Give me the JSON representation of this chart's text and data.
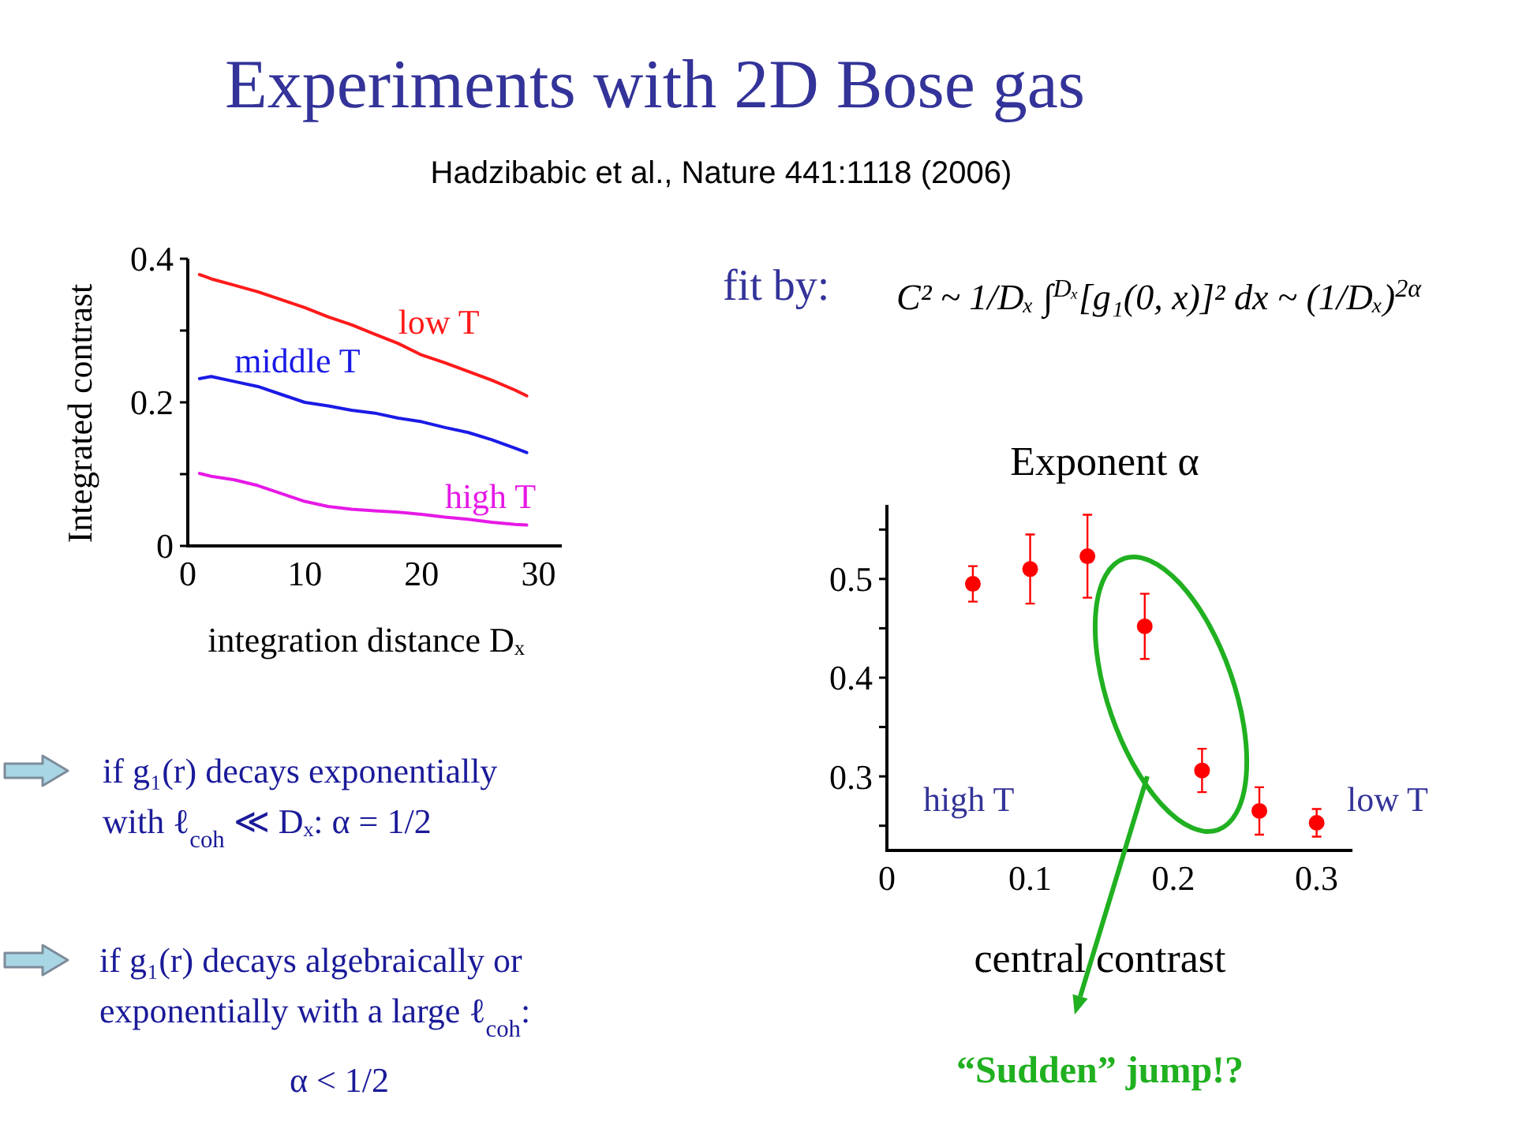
{
  "chart_data": [
    {
      "type": "line",
      "title": "Experiments with 2D Bose gas",
      "subtitle": "Hadzibabic et al., Nature 441:1118 (2006)",
      "xlabel": "integration distance Dₓ",
      "ylabel": "Integrated contrast",
      "annotations": [
        "if g₁(r) decays exponentially",
        "with ℓ$_{coh}$ ≪ Dₓ:  α = 1/2",
        "if g₁(r) decays algebraically or",
        "exponentially with a large ℓ$_{coh}$:",
        "α < 1/2"
      ],
      "x": [
        1,
        2,
        4,
        6,
        8,
        10,
        12,
        14,
        16,
        18,
        20,
        22,
        24,
        26,
        28,
        29
      ],
      "series": [
        {
          "name": "low T",
          "color": "#ff1a1a",
          "values": [
            0.378,
            0.372,
            0.363,
            0.354,
            0.343,
            0.332,
            0.319,
            0.308,
            0.295,
            0.282,
            0.266,
            0.255,
            0.243,
            0.231,
            0.217,
            0.209
          ]
        },
        {
          "name": "middle T",
          "color": "#1a1ae6",
          "values": [
            0.233,
            0.236,
            0.229,
            0.222,
            0.211,
            0.2,
            0.195,
            0.189,
            0.185,
            0.178,
            0.173,
            0.165,
            0.158,
            0.148,
            0.136,
            0.13
          ]
        },
        {
          "name": "high T",
          "color": "#e619e6",
          "values": [
            0.101,
            0.097,
            0.092,
            0.084,
            0.073,
            0.062,
            0.055,
            0.051,
            0.049,
            0.047,
            0.044,
            0.04,
            0.037,
            0.033,
            0.03,
            0.029
          ]
        }
      ],
      "xlim": [
        0,
        32
      ],
      "ylim": [
        0,
        0.4
      ],
      "xticks": [
        0,
        10,
        20,
        30
      ],
      "yticks": [
        0,
        {
          "value": 0.1,
          "label": null
        },
        0.2,
        {
          "value": 0.3,
          "label": null
        },
        0.4
      ]
    },
    {
      "type": "scatter",
      "title": "Exponent α",
      "xlabel": "central contrast",
      "annotations": [
        "fit by:",
        "C² ~ 1/Dₓ ∫$^{Dₓ}$[g₁(0, x)]² dx ~ (1/Dₓ)$^{2α}$",
        "high T",
        "low T",
        "“Sudden” jump!?"
      ],
      "x": [
        0.06,
        0.1,
        0.14,
        0.18,
        0.22,
        0.26,
        0.3
      ],
      "series": [
        {
          "color": "#ff0000",
          "values": [
            0.495,
            0.51,
            0.523,
            0.452,
            0.306,
            0.265,
            0.253
          ],
          "errors": [
            0.018,
            0.035,
            0.042,
            0.033,
            0.022,
            0.024,
            0.014
          ]
        }
      ],
      "marker": "circle",
      "xlim": [
        0,
        0.325
      ],
      "ylim": [
        0.225,
        0.575
      ],
      "xticks": [
        0,
        0.1,
        0.2,
        0.3
      ],
      "yticks": [
        {
          "value": 0.25,
          "label": null
        },
        0.3,
        {
          "value": 0.35,
          "label": null
        },
        0.4,
        {
          "value": 0.45,
          "label": null
        },
        0.5,
        {
          "value": 0.55,
          "label": null
        }
      ]
    }
  ]
}
